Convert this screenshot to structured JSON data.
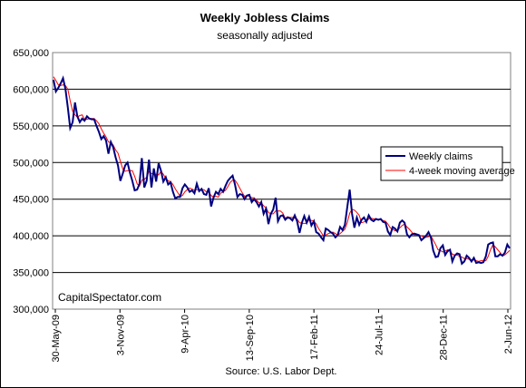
{
  "chart_data": {
    "type": "line",
    "title": "Weekly Jobless Claims",
    "subtitle": "seasonally adjusted",
    "source": "Source: U.S. Labor Dept.",
    "watermark": "CapitalSpectator.com",
    "ylim": [
      300000,
      650000
    ],
    "y_ticks": [
      "300,000",
      "350,000",
      "400,000",
      "450,000",
      "500,000",
      "550,000",
      "600,000",
      "650,000"
    ],
    "y_tick_values": [
      300000,
      350000,
      400000,
      450000,
      500000,
      550000,
      600000,
      650000
    ],
    "x_ticks": [
      "30-May-09",
      "3-Nov-09",
      "9-Apr-10",
      "13-Sep-10",
      "17-Feb-11",
      "24-Jul-11",
      "28-Dec-11",
      "2-Jun-12"
    ],
    "grid": "horizontal",
    "legend_position": "right",
    "series": [
      {
        "name": "Weekly claims",
        "color": "#000080",
        "values": [
          613000,
          597000,
          602000,
          608000,
          615000,
          600000,
          575000,
          547000,
          555000,
          582000,
          563000,
          555000,
          560000,
          557000,
          563000,
          560000,
          559000,
          559000,
          550000,
          542000,
          532000,
          536000,
          530000,
          512000,
          528000,
          521000,
          507000,
          496000,
          475000,
          485000,
          496000,
          500000,
          486000,
          475000,
          462000,
          463000,
          471000,
          506000,
          466000,
          475000,
          504000,
          466000,
          492000,
          474000,
          499000,
          489000,
          474000,
          480000,
          470000,
          473000,
          460000,
          451000,
          453000,
          453000,
          465000,
          470000,
          466000,
          460000,
          462000,
          458000,
          471000,
          461000,
          464000,
          457000,
          456000,
          465000,
          440000,
          452000,
          460000,
          457000,
          464000,
          460000,
          468000,
          475000,
          479000,
          482000,
          470000,
          453000,
          457000,
          456000,
          450000,
          455000,
          456000,
          446000,
          450000,
          446000,
          440000,
          446000,
          430000,
          437000,
          416000,
          430000,
          436000,
          452000,
          420000,
          427000,
          428000,
          422000,
          425000,
          424000,
          421000,
          428000,
          420000,
          404000,
          418000,
          427000,
          418000,
          426000,
          414000,
          420000,
          405000,
          403000,
          398000,
          394000,
          410000,
          408000,
          405000,
          403000,
          398000,
          401000,
          412000,
          408000,
          415000,
          439000,
          463000,
          430000,
          411000,
          425000,
          415000,
          422000,
          425000,
          419000,
          428000,
          422000,
          420000,
          423000,
          422000,
          423000,
          419000,
          418000,
          406000,
          401000,
          412000,
          410000,
          406000,
          418000,
          421000,
          418000,
          402000,
          398000,
          402000,
          403000,
          402000,
          401000,
          394000,
          397000,
          400000,
          405000,
          398000,
          380000,
          371000,
          372000,
          383000,
          387000,
          374000,
          379000,
          381000,
          365000,
          373000,
          376000,
          375000,
          362000,
          365000,
          373000,
          370000,
          365000,
          370000,
          363000,
          364000,
          363000,
          364000,
          372000,
          388000,
          390000,
          391000,
          372000,
          372000,
          375000,
          373000,
          377000,
          388000,
          383000
        ],
        "ma_name": "4-week moving average"
      },
      {
        "name": "4-week moving average",
        "color": "#ff0000",
        "values": [
          617000,
          612000,
          606000,
          605000,
          606000,
          605000,
          600000,
          584000,
          570000,
          565000,
          562000,
          564000,
          565000,
          559000,
          559000,
          560000,
          560000,
          560000,
          557000,
          553000,
          546000,
          540000,
          535000,
          528000,
          527000,
          524000,
          517000,
          513000,
          502000,
          491000,
          488000,
          489000,
          489000,
          489000,
          481000,
          471000,
          468000,
          476000,
          477000,
          480000,
          488000,
          485000,
          484000,
          484000,
          483000,
          488000,
          484000,
          478000,
          475000,
          474000,
          470000,
          464000,
          459000,
          454000,
          455000,
          460000,
          463000,
          465000,
          464000,
          462000,
          463000,
          463000,
          463000,
          463000,
          460000,
          460000,
          455000,
          453000,
          454000,
          453000,
          458000,
          460000,
          462000,
          467000,
          473000,
          476000,
          476000,
          471000,
          465000,
          459000,
          454000,
          455000,
          454000,
          452000,
          452000,
          449000,
          445000,
          445000,
          441000,
          438000,
          432000,
          430000,
          430000,
          434000,
          434000,
          434000,
          431000,
          424000,
          426000,
          425000,
          425000,
          424000,
          423000,
          418000,
          417000,
          417000,
          417000,
          422000,
          421000,
          420000,
          416000,
          410000,
          405000,
          400000,
          401000,
          403000,
          404000,
          405000,
          403000,
          401000,
          403000,
          406000,
          409000,
          418000,
          431000,
          436000,
          435000,
          432000,
          428000,
          418000,
          419000,
          420000,
          423000,
          424000,
          423000,
          423000,
          422000,
          422000,
          421000,
          420000,
          416000,
          411000,
          409000,
          407000,
          407000,
          411000,
          414000,
          416000,
          412000,
          409000,
          405000,
          401000,
          401000,
          401000,
          400000,
          398000,
          398000,
          399000,
          400000,
          394000,
          388000,
          381000,
          380000,
          378000,
          379000,
          381000,
          380000,
          375000,
          374000,
          374000,
          372000,
          371000,
          369000,
          369000,
          368000,
          367000,
          367000,
          366000,
          365000,
          366000,
          366000,
          366000,
          372000,
          381000,
          388000,
          385000,
          381000,
          377000,
          373000,
          374000,
          377000,
          380000
        ]
      }
    ]
  }
}
